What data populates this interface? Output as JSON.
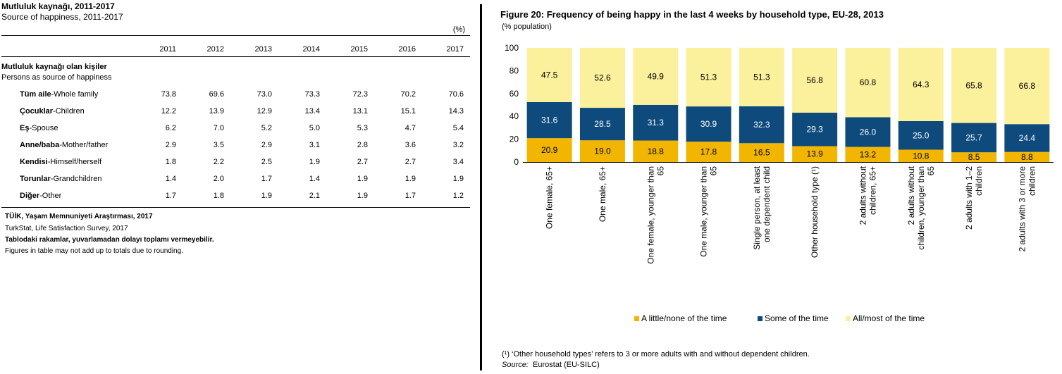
{
  "table": {
    "title": "Mutluluk kaynağı, 2011-2017",
    "subtitle": "Source of happiness, 2011-2017",
    "unit": "(%)",
    "years": [
      "2011",
      "2012",
      "2013",
      "2014",
      "2015",
      "2016",
      "2017"
    ],
    "section_tr": "Mutluluk kaynağı olan kişiler",
    "section_en": "Persons as source of happiness",
    "rows": [
      {
        "tr": "Tüm aile",
        "en": "-Whole family",
        "values": [
          "73.8",
          "69.6",
          "73.0",
          "73.3",
          "72.3",
          "70.2",
          "70.6"
        ]
      },
      {
        "tr": "Çocuklar",
        "en": "-Children",
        "values": [
          "12.2",
          "13.9",
          "12.9",
          "13.4",
          "13.1",
          "15.1",
          "14.3"
        ]
      },
      {
        "tr": "Eş",
        "en": "-Spouse",
        "values": [
          "6.2",
          "7.0",
          "5.2",
          "5.0",
          "5.3",
          "4.7",
          "5.4"
        ]
      },
      {
        "tr": "Anne/baba",
        "en": "-Mother/father",
        "values": [
          "2.9",
          "3.5",
          "2.9",
          "3.1",
          "2.8",
          "3.6",
          "3.2"
        ]
      },
      {
        "tr": "Kendisi",
        "en": "-Himself/herself",
        "values": [
          "1.8",
          "2.2",
          "2.5",
          "1.9",
          "2.7",
          "2.7",
          "3.4"
        ]
      },
      {
        "tr": "Torunlar",
        "en": "-Grandchildren",
        "values": [
          "1.4",
          "2.0",
          "1.7",
          "1.4",
          "1.9",
          "1.9",
          "1.9"
        ]
      },
      {
        "tr": "Diğer",
        "en": "-Other",
        "values": [
          "1.7",
          "1.8",
          "1.9",
          "2.1",
          "1.9",
          "1.7",
          "1.2"
        ]
      }
    ],
    "source_tr": "TÜİK, Yaşam Memnuniyeti Araştırması, 2017",
    "source_en": "TurkStat, Life Satisfaction Survey, 2017",
    "note_tr": "Tablodaki rakamlar, yuvarlamadan dolayı toplamı vermeyebilir.",
    "note_en": "Figures in table may not add up to totals due to rounding."
  },
  "figure": {
    "title": "Figure 20: Frequency of being happy in the last 4 weeks by household type, EU-28, 2013",
    "subtitle": "(% population)",
    "note": "(¹) ‘Other household types’ refers to 3 or more adults with and without dependent children.",
    "source_label": "Source:",
    "source_text": "Eurostat (EU-SILC)"
  },
  "chart_data": {
    "type": "bar",
    "stacked": true,
    "categories": [
      "One female, 65+",
      "One male, 65+",
      "One female, younger than 65",
      "One male, younger than 65",
      "Single person, at least one dependent child",
      "Other household type (¹)",
      "2 adults without children, 65+",
      "2 adults without children, younger than 65",
      "2 adults with 1–2 children",
      "2 adults with 3 or more children"
    ],
    "series": [
      {
        "name": "A little/none of the time",
        "color": "#f2b600",
        "values": [
          20.9,
          19.0,
          18.8,
          17.8,
          16.5,
          13.9,
          13.2,
          10.8,
          8.5,
          8.8
        ]
      },
      {
        "name": "Some of the time",
        "color": "#0e4b7c",
        "values": [
          31.6,
          28.5,
          31.3,
          30.9,
          32.3,
          29.3,
          26.0,
          25.0,
          25.7,
          24.4
        ]
      },
      {
        "name": "All/most of the time",
        "color": "#fbf09c",
        "values": [
          47.5,
          52.6,
          49.9,
          51.3,
          51.3,
          56.8,
          60.8,
          64.3,
          65.8,
          66.8
        ]
      }
    ],
    "yticks": [
      0,
      20,
      40,
      60,
      80,
      100
    ],
    "ylim": [
      0,
      100
    ],
    "grid": false,
    "legend": "bottom"
  }
}
